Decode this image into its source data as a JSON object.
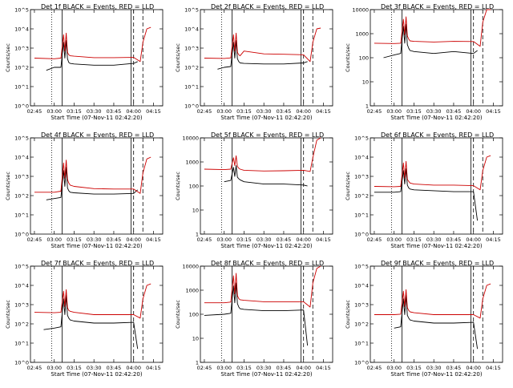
{
  "start_time_label": "Start Time (07-Nov-11 02:42:20)",
  "ylabel": "Counts/sec",
  "x_tick_labels": [
    "02:45",
    "03:00",
    "03:15",
    "03:30",
    "03:45",
    "04:00",
    "04:15"
  ],
  "colors": {
    "events": "#000000",
    "lld": "#cc0000"
  },
  "chart_data": [
    {
      "type": "line",
      "title": "Det 1f BLACK = Events, RED = LLD",
      "ylim": [
        1,
        100000
      ],
      "ylog": true,
      "y_tick_labels": [
        "10^0",
        "10^1",
        "10^2",
        "10^3",
        "10^4",
        "10^5"
      ],
      "series": [
        {
          "key": "events",
          "x": [
            "02:54",
            "03:00",
            "03:05",
            "03:07",
            "03:08",
            "03:09",
            "03:10",
            "03:11",
            "03:12",
            "03:15",
            "03:30",
            "03:45",
            "04:00",
            "04:03"
          ],
          "values": [
            70,
            100,
            100,
            2000,
            300,
            2500,
            280,
            180,
            160,
            150,
            130,
            130,
            160,
            200
          ]
        },
        {
          "key": "lld",
          "x": [
            "02:45",
            "03:00",
            "03:05",
            "03:07",
            "03:08",
            "03:09",
            "03:10",
            "03:11",
            "03:12",
            "03:15",
            "03:30",
            "03:45",
            "04:00",
            "04:05",
            "04:07",
            "04:10",
            "04:13"
          ],
          "values": [
            300,
            280,
            300,
            5000,
            700,
            6000,
            600,
            450,
            400,
            380,
            320,
            320,
            330,
            200,
            2000,
            10000,
            12000
          ]
        }
      ]
    },
    {
      "type": "line",
      "title": "Det 2f BLACK = Events, RED = LLD",
      "ylim": [
        1,
        100000
      ],
      "ylog": true,
      "y_tick_labels": [
        "10^0",
        "10^1",
        "10^2",
        "10^3",
        "10^4",
        "10^5"
      ],
      "series": [
        {
          "key": "events",
          "x": [
            "02:55",
            "03:00",
            "03:05",
            "03:07",
            "03:08",
            "03:09",
            "03:10",
            "03:11",
            "03:12",
            "03:15",
            "03:30",
            "03:45",
            "04:00",
            "04:03"
          ],
          "values": [
            80,
            100,
            110,
            2000,
            300,
            2500,
            280,
            200,
            170,
            160,
            150,
            150,
            170,
            200
          ]
        },
        {
          "key": "lld",
          "x": [
            "02:45",
            "03:00",
            "03:05",
            "03:07",
            "03:08",
            "03:09",
            "03:10",
            "03:11",
            "03:12",
            "03:15",
            "03:30",
            "03:45",
            "04:00",
            "04:05",
            "04:07",
            "04:10",
            "04:13"
          ],
          "values": [
            300,
            290,
            310,
            5000,
            700,
            6000,
            600,
            450,
            400,
            700,
            500,
            480,
            450,
            200,
            2000,
            10000,
            11000
          ]
        }
      ]
    },
    {
      "type": "line",
      "title": "Det 3f BLACK = Events, RED = LLD",
      "ylim": [
        1,
        10000
      ],
      "ylog": true,
      "y_tick_labels": [
        "1",
        "10",
        "100",
        "1000",
        "10000"
      ],
      "series": [
        {
          "key": "events",
          "x": [
            "02:52",
            "03:00",
            "03:05",
            "03:07",
            "03:08",
            "03:09",
            "03:10",
            "03:11",
            "03:12",
            "03:15",
            "03:30",
            "03:45",
            "04:00",
            "04:03"
          ],
          "values": [
            100,
            130,
            150,
            2000,
            400,
            2500,
            350,
            250,
            200,
            180,
            150,
            180,
            150,
            200
          ]
        },
        {
          "key": "lld",
          "x": [
            "02:45",
            "03:00",
            "03:05",
            "03:07",
            "03:08",
            "03:09",
            "03:10",
            "03:11",
            "03:12",
            "03:15",
            "03:30",
            "03:45",
            "04:00",
            "04:05",
            "04:07",
            "04:10",
            "04:13"
          ],
          "values": [
            400,
            390,
            400,
            4000,
            900,
            5000,
            800,
            600,
            500,
            480,
            450,
            480,
            470,
            300,
            3000,
            10000,
            10000
          ]
        }
      ]
    },
    {
      "type": "line",
      "title": "Det 4f BLACK = Events, RED = LLD",
      "ylim": [
        1,
        100000
      ],
      "ylog": true,
      "y_tick_labels": [
        "10^0",
        "10^1",
        "10^2",
        "10^3",
        "10^4",
        "10^5"
      ],
      "series": [
        {
          "key": "events",
          "x": [
            "02:54",
            "03:00",
            "03:05",
            "03:07",
            "03:08",
            "03:09",
            "03:10",
            "03:11",
            "03:12",
            "03:15",
            "03:30",
            "03:45",
            "04:00",
            "04:03"
          ],
          "values": [
            60,
            70,
            80,
            2000,
            300,
            3000,
            250,
            180,
            150,
            140,
            120,
            120,
            130,
            200
          ]
        },
        {
          "key": "lld",
          "x": [
            "02:45",
            "03:00",
            "03:05",
            "03:07",
            "03:08",
            "03:09",
            "03:10",
            "03:11",
            "03:12",
            "03:15",
            "03:30",
            "03:45",
            "04:00",
            "04:05",
            "04:07",
            "04:10",
            "04:13"
          ],
          "values": [
            150,
            150,
            170,
            5000,
            800,
            7000,
            700,
            450,
            350,
            300,
            230,
            220,
            220,
            130,
            1500,
            8000,
            10000
          ]
        }
      ]
    },
    {
      "type": "line",
      "title": "Det 5f BLACK = Events, RED = LLD",
      "ylim": [
        1,
        10000
      ],
      "ylog": true,
      "y_tick_labels": [
        "1",
        "10",
        "100",
        "1000",
        "10000"
      ],
      "series": [
        {
          "key": "events",
          "x": [
            "03:00",
            "03:05",
            "03:07",
            "03:08",
            "03:09",
            "03:10",
            "03:11",
            "03:12",
            "03:15",
            "03:30",
            "03:45",
            "04:00",
            "04:03"
          ],
          "values": [
            150,
            170,
            600,
            250,
            700,
            230,
            200,
            180,
            150,
            120,
            120,
            110,
            100
          ]
        },
        {
          "key": "lld",
          "x": [
            "02:45",
            "03:00",
            "03:05",
            "03:07",
            "03:08",
            "03:09",
            "03:10",
            "03:11",
            "03:12",
            "03:15",
            "03:30",
            "03:45",
            "04:00",
            "04:05",
            "04:07",
            "04:10",
            "04:13"
          ],
          "values": [
            500,
            480,
            500,
            1500,
            700,
            1800,
            650,
            550,
            500,
            450,
            420,
            430,
            450,
            400,
            1500,
            8000,
            10000
          ]
        }
      ]
    },
    {
      "type": "line",
      "title": "Det 6f BLACK = Events, RED = LLD",
      "ylim": [
        1,
        100000
      ],
      "ylog": true,
      "y_tick_labels": [
        "10^0",
        "10^1",
        "10^2",
        "10^3",
        "10^4",
        "10^5"
      ],
      "series": [
        {
          "key": "events",
          "x": [
            "02:45",
            "03:00",
            "03:05",
            "03:07",
            "03:08",
            "03:09",
            "03:10",
            "03:11",
            "03:12",
            "03:15",
            "03:30",
            "03:45",
            "04:00",
            "04:03"
          ],
          "values": [
            150,
            150,
            160,
            2000,
            400,
            2500,
            350,
            250,
            220,
            200,
            180,
            160,
            160,
            5
          ]
        },
        {
          "key": "lld",
          "x": [
            "02:45",
            "03:00",
            "03:05",
            "03:07",
            "03:08",
            "03:09",
            "03:10",
            "03:11",
            "03:12",
            "03:15",
            "03:30",
            "03:45",
            "04:00",
            "04:05",
            "04:07",
            "04:10",
            "04:13"
          ],
          "values": [
            300,
            290,
            300,
            5000,
            800,
            6000,
            700,
            550,
            450,
            400,
            350,
            350,
            330,
            200,
            2000,
            10000,
            12000
          ]
        }
      ]
    },
    {
      "type": "line",
      "title": "Det 7f BLACK = Events, RED = LLD",
      "ylim": [
        1,
        100000
      ],
      "ylog": true,
      "y_tick_labels": [
        "10^0",
        "10^1",
        "10^2",
        "10^3",
        "10^4",
        "10^5"
      ],
      "series": [
        {
          "key": "events",
          "x": [
            "02:52",
            "03:00",
            "03:05",
            "03:07",
            "03:08",
            "03:09",
            "03:10",
            "03:11",
            "03:12",
            "03:15",
            "03:30",
            "03:45",
            "04:00",
            "04:03"
          ],
          "values": [
            50,
            60,
            70,
            2000,
            300,
            3000,
            280,
            200,
            160,
            140,
            110,
            110,
            120,
            5
          ]
        },
        {
          "key": "lld",
          "x": [
            "02:45",
            "03:00",
            "03:05",
            "03:07",
            "03:08",
            "03:09",
            "03:10",
            "03:11",
            "03:12",
            "03:15",
            "03:30",
            "03:45",
            "04:00",
            "04:05",
            "04:07",
            "04:10",
            "04:13"
          ],
          "values": [
            400,
            380,
            400,
            5000,
            800,
            6000,
            700,
            500,
            450,
            400,
            300,
            300,
            300,
            200,
            2000,
            10000,
            12000
          ]
        }
      ]
    },
    {
      "type": "line",
      "title": "Det 8f BLACK = Events, RED = LLD",
      "ylim": [
        1,
        10000
      ],
      "ylog": true,
      "y_tick_labels": [
        "1",
        "10",
        "100",
        "1000",
        "10000"
      ],
      "series": [
        {
          "key": "events",
          "x": [
            "02:45",
            "03:00",
            "03:05",
            "03:07",
            "03:08",
            "03:09",
            "03:10",
            "03:11",
            "03:12",
            "03:15",
            "03:30",
            "03:45",
            "04:00",
            "04:03"
          ],
          "values": [
            90,
            100,
            110,
            1500,
            300,
            2000,
            280,
            200,
            170,
            160,
            140,
            140,
            150,
            5
          ]
        },
        {
          "key": "lld",
          "x": [
            "02:45",
            "03:00",
            "03:05",
            "03:07",
            "03:08",
            "03:09",
            "03:10",
            "03:11",
            "03:12",
            "03:15",
            "03:30",
            "03:45",
            "04:00",
            "04:05",
            "04:07",
            "04:10",
            "04:13"
          ],
          "values": [
            300,
            300,
            320,
            4000,
            700,
            5000,
            600,
            450,
            400,
            380,
            330,
            330,
            330,
            200,
            2000,
            8000,
            10000
          ]
        }
      ]
    },
    {
      "type": "line",
      "title": "Det 9f BLACK = Events, RED = LLD",
      "ylim": [
        1,
        100000
      ],
      "ylog": true,
      "y_tick_labels": [
        "10^0",
        "10^1",
        "10^2",
        "10^3",
        "10^4",
        "10^5"
      ],
      "series": [
        {
          "key": "events",
          "x": [
            "03:00",
            "03:05",
            "03:07",
            "03:08",
            "03:09",
            "03:10",
            "03:11",
            "03:12",
            "03:15",
            "03:30",
            "03:45",
            "04:00",
            "04:03"
          ],
          "values": [
            60,
            70,
            2000,
            300,
            3000,
            280,
            200,
            160,
            140,
            110,
            110,
            120,
            5
          ]
        },
        {
          "key": "lld",
          "x": [
            "02:45",
            "03:00",
            "03:05",
            "03:07",
            "03:08",
            "03:09",
            "03:10",
            "03:11",
            "03:12",
            "03:15",
            "03:30",
            "03:45",
            "04:00",
            "04:05",
            "04:07",
            "04:10",
            "04:13"
          ],
          "values": [
            300,
            300,
            320,
            5000,
            800,
            6000,
            700,
            500,
            420,
            380,
            300,
            300,
            300,
            200,
            2000,
            10000,
            12000
          ]
        }
      ]
    }
  ]
}
